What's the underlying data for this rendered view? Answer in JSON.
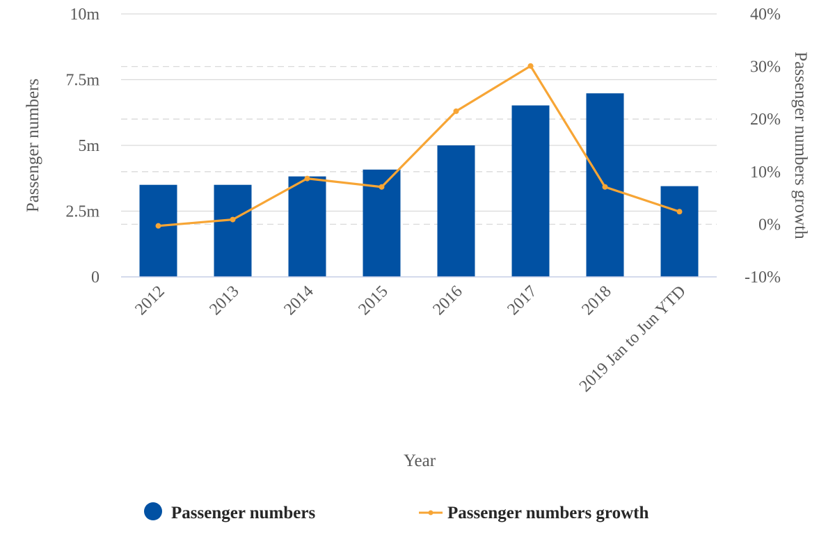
{
  "chart_data": {
    "type": "bar",
    "categories": [
      "2012",
      "2013",
      "2014",
      "2015",
      "2016",
      "2017",
      "2018",
      "2019 Jan to Jun YTD"
    ],
    "series": [
      {
        "name": "Passenger numbers",
        "type": "bar",
        "axis": "left",
        "color": "#0151a3",
        "values": [
          3.5,
          3.5,
          3.82,
          4.08,
          5.0,
          6.52,
          6.98,
          3.45
        ]
      },
      {
        "name": "Passenger numbers growth",
        "type": "line",
        "axis": "right",
        "color": "#f7a535",
        "values": [
          -0.3,
          0.9,
          8.7,
          7.1,
          21.5,
          30.1,
          7.1,
          2.4
        ]
      }
    ],
    "xlabel": "Year",
    "ylabel": "Passenger numbers",
    "y2label": "Passenger numbers growth",
    "ylim": [
      0,
      10
    ],
    "y2lim": [
      -10,
      40
    ],
    "yticks": [
      "0",
      "2.5m",
      "5m",
      "7.5m",
      "10m"
    ],
    "y2ticks": [
      "-10%",
      "0%",
      "10%",
      "20%",
      "30%",
      "40%"
    ],
    "grid": true,
    "legend_position": "bottom"
  }
}
